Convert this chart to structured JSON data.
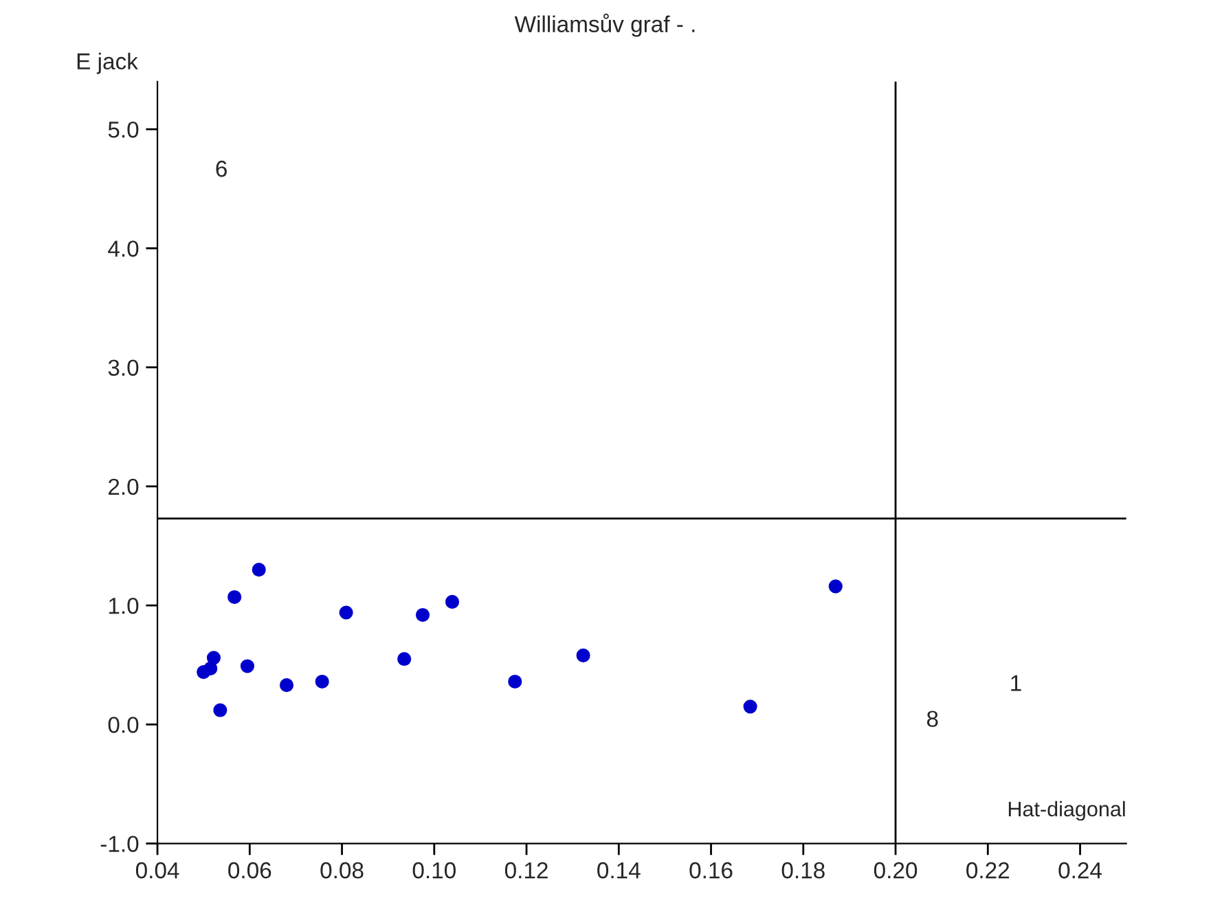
{
  "chart_data": {
    "type": "scatter",
    "title": "Williamsův graf - .",
    "xlabel": "Hat-diagonal",
    "ylabel": "E jack",
    "x": [
      0.062,
      0.0567,
      0.0809,
      0.0975,
      0.1039,
      0.0522,
      0.0515,
      0.05,
      0.0595,
      0.068,
      0.0757,
      0.0935,
      0.1175,
      0.1323,
      0.0536,
      0.1685,
      0.187
    ],
    "series": [
      {
        "color": "#0000cc",
        "values": [
          1.3,
          1.07,
          0.94,
          0.92,
          1.03,
          0.56,
          0.47,
          0.44,
          0.49,
          0.33,
          0.36,
          0.55,
          0.36,
          0.58,
          0.12,
          0.15,
          1.16
        ]
      }
    ],
    "marker": "circle",
    "xlim": [
      0.04,
      0.25
    ],
    "ylim": [
      -1.0,
      5.4
    ],
    "xticks": [
      {
        "value": 0.04,
        "label": "0.04"
      },
      {
        "value": 0.06,
        "label": "0.06"
      },
      {
        "value": 0.08,
        "label": "0.08"
      },
      {
        "value": 0.1,
        "label": "0.10"
      },
      {
        "value": 0.12,
        "label": "0.12"
      },
      {
        "value": 0.14,
        "label": "0.14"
      },
      {
        "value": 0.16,
        "label": "0.16"
      },
      {
        "value": 0.18,
        "label": "0.18"
      },
      {
        "value": 0.2,
        "label": "0.20"
      },
      {
        "value": 0.22,
        "label": "0.22"
      },
      {
        "value": 0.24,
        "label": "0.24"
      }
    ],
    "yticks": [
      {
        "value": -1.0,
        "label": "-1.0"
      },
      {
        "value": 0.0,
        "label": "0.0"
      },
      {
        "value": 1.0,
        "label": "1.0"
      },
      {
        "value": 2.0,
        "label": "2.0"
      },
      {
        "value": 3.0,
        "label": "3.0"
      },
      {
        "value": 4.0,
        "label": "4.0"
      },
      {
        "value": 5.0,
        "label": "5.0"
      }
    ],
    "ref_lines": [
      {
        "axis": "x",
        "value": 0.2,
        "color": "#000000"
      },
      {
        "axis": "y",
        "value": 1.73,
        "color": "#000000"
      }
    ],
    "annotations": [
      "6",
      "8",
      "1"
    ],
    "grid": false,
    "legend": false
  }
}
